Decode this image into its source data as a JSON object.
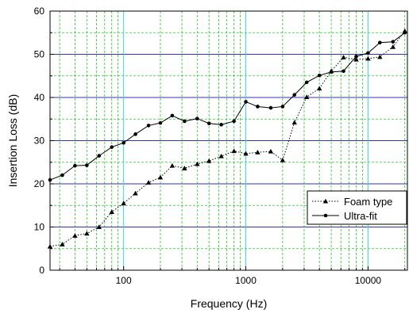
{
  "chart_data": {
    "type": "line",
    "xlabel": "Frequency (Hz)",
    "ylabel": "Insertion Loss (dB)",
    "xscale": "log",
    "xlim": [
      25,
      21000
    ],
    "ylim": [
      0,
      60
    ],
    "x_ticks": [
      {
        "value": 100,
        "label": "100"
      },
      {
        "value": 1000,
        "label": "1000"
      },
      {
        "value": 10000,
        "label": "10000"
      }
    ],
    "y_ticks": [
      {
        "value": 0,
        "label": "0"
      },
      {
        "value": 10,
        "label": "10"
      },
      {
        "value": 20,
        "label": "20"
      },
      {
        "value": 30,
        "label": "30"
      },
      {
        "value": 40,
        "label": "40"
      },
      {
        "value": 50,
        "label": "50"
      },
      {
        "value": 60,
        "label": "60"
      }
    ],
    "grid": true,
    "legend_position": "lower-right",
    "series": [
      {
        "name": "Foam type",
        "marker": "triangle",
        "line_style": "dotted",
        "color": "#000000",
        "x": [
          25,
          31.5,
          40,
          50,
          63,
          80,
          100,
          125,
          160,
          200,
          250,
          315,
          400,
          500,
          630,
          800,
          1000,
          1250,
          1600,
          2000,
          2500,
          3150,
          4000,
          5000,
          6300,
          8000,
          10000,
          12500,
          16000,
          20000
        ],
        "y": [
          5.5,
          6,
          8,
          8.5,
          10,
          13.5,
          15.5,
          17.8,
          20.3,
          21.5,
          24.2,
          23.6,
          24.6,
          25.3,
          26.4,
          27.6,
          27,
          27.3,
          27.5,
          25.5,
          34.2,
          40.1,
          42.1,
          46.1,
          49.3,
          48.8,
          49,
          49.4,
          51.7,
          55.4
        ]
      },
      {
        "name": "Ultra-fit",
        "marker": "circle",
        "line_style": "solid",
        "color": "#000000",
        "x": [
          25,
          31.5,
          40,
          50,
          63,
          80,
          100,
          125,
          160,
          200,
          250,
          315,
          400,
          500,
          630,
          800,
          1000,
          1250,
          1600,
          2000,
          2500,
          3150,
          4000,
          5000,
          6300,
          8000,
          10000,
          12500,
          16000,
          20000
        ],
        "y": [
          20.9,
          22,
          24.2,
          24.3,
          26.5,
          28.5,
          29.5,
          31.5,
          33.5,
          34.1,
          35.8,
          34.5,
          35.1,
          34,
          33.7,
          34.5,
          39,
          37.9,
          37.6,
          37.9,
          40.6,
          43.5,
          45.1,
          45.9,
          46.1,
          49.5,
          50.3,
          52.7,
          52.9,
          55
        ]
      }
    ]
  },
  "colors": {
    "horizontal_major_grid": "#3333aa",
    "vertical_major_grid": "#33dddd",
    "minor_grid": "#22cc22"
  }
}
